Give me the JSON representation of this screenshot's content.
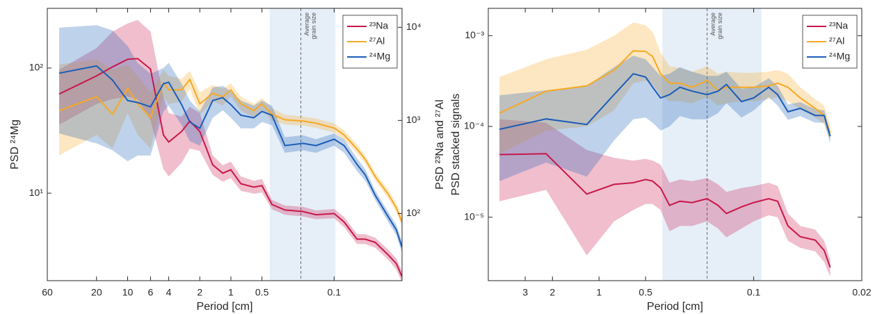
{
  "chart_data": [
    {
      "type": "line",
      "xlabel": "Period [cm]",
      "ylabel": "PSD ²⁴Mg",
      "y2label": "PSD ²³Na and ²⁷Al",
      "xscale": "log",
      "yscale": "log",
      "y2scale": "log",
      "grid": false,
      "legend": "upper right",
      "xlim": [
        60,
        0.022
      ],
      "xticks": [
        60,
        20,
        10,
        6,
        4,
        2,
        1,
        0.5,
        0.1
      ],
      "ylim": [
        2,
        300
      ],
      "yticks": [
        {
          "value": 10,
          "label": "10¹"
        },
        {
          "value": 100,
          "label": "10²"
        }
      ],
      "y2lim": [
        19,
        16000
      ],
      "y2ticks": [
        {
          "value": 100,
          "label": "10²"
        },
        {
          "value": 1000,
          "label": "10³"
        },
        {
          "value": 10000,
          "label": "10⁴"
        }
      ],
      "shade": [
        0.42,
        0.097
      ],
      "marker_x": 0.21,
      "annotation": [
        "Average",
        "grain size"
      ],
      "x": [
        46,
        20,
        14,
        10,
        8,
        6,
        4.5,
        4,
        3,
        2.5,
        2,
        1.5,
        1.2,
        1,
        0.8,
        0.6,
        0.5,
        0.4,
        0.3,
        0.2,
        0.15,
        0.1,
        0.08,
        0.06,
        0.05,
        0.04,
        0.03,
        0.025,
        0.022
      ],
      "series": [
        {
          "name": "²³Na",
          "color": "#c8174a",
          "axis": "y2",
          "values": [
            1923,
            3006,
            3758,
            4539,
            4612,
            3565,
            697,
            587,
            760,
            984,
            760,
            333,
            271,
            295,
            209,
            192,
            199,
            125,
            109,
            105,
            97,
            100,
            81,
            53,
            53,
            49,
            36,
            29,
            21
          ],
          "upper": [
            3500,
            6000,
            9000,
            11000,
            12000,
            9000,
            1800,
            1200,
            1100,
            1400,
            1200,
            420,
            330,
            360,
            250,
            225,
            235,
            140,
            122,
            118,
            108,
            112,
            92,
            60,
            60,
            55,
            41,
            33,
            24
          ],
          "lower": [
            900,
            1500,
            1700,
            1800,
            1700,
            1000,
            300,
            250,
            350,
            500,
            470,
            260,
            220,
            240,
            175,
            163,
            168,
            111,
            97,
            93,
            87,
            89,
            71,
            47,
            47,
            43,
            32,
            25,
            18
          ]
        },
        {
          "name": "²⁷Al",
          "color": "#f7a823",
          "axis": "y2",
          "values": [
            1271,
            1794,
            1167,
            2205,
            1510,
            1072,
            2530,
            2130,
            2130,
            2755,
            1510,
            1954,
            1794,
            2130,
            1510,
            1271,
            1510,
            1167,
            1016,
            984,
            933,
            828,
            697,
            494,
            382,
            249,
            162,
            115,
            81
          ],
          "upper": [
            4000,
            4500,
            3500,
            4000,
            3000,
            2000,
            3500,
            3000,
            2800,
            3400,
            2000,
            2400,
            2200,
            2500,
            1800,
            1500,
            1750,
            1350,
            1150,
            1100,
            1050,
            930,
            780,
            550,
            420,
            275,
            180,
            128,
            92
          ],
          "lower": [
            420,
            700,
            500,
            1200,
            700,
            500,
            1800,
            1500,
            1600,
            2200,
            1150,
            1600,
            1450,
            1800,
            1270,
            1080,
            1300,
            1000,
            900,
            880,
            830,
            740,
            620,
            440,
            345,
            225,
            146,
            104,
            72
          ]
        },
        {
          "name": "²⁴Mg",
          "color": "#1a5cb8",
          "axis": "y",
          "values": [
            91,
            104,
            80,
            55,
            53,
            49,
            75,
            77,
            51,
            37,
            33,
            55,
            58,
            51,
            42,
            40,
            45,
            42,
            24,
            25,
            24,
            27,
            24,
            17,
            14,
            9.6,
            6.5,
            5.1,
            3.7
          ],
          "upper": [
            210,
            220,
            200,
            150,
            110,
            90,
            100,
            110,
            75,
            55,
            45,
            70,
            72,
            65,
            55,
            50,
            55,
            50,
            28,
            29,
            27,
            30,
            27,
            19,
            15.5,
            10.5,
            7.1,
            5.6,
            4.1
          ],
          "lower": [
            30,
            25,
            22,
            18,
            20,
            20,
            45,
            50,
            35,
            26,
            24,
            40,
            46,
            40,
            33,
            33,
            37,
            35,
            21,
            22,
            21,
            24,
            21,
            15,
            12.6,
            8.8,
            5.9,
            4.6,
            3.3
          ]
        }
      ]
    },
    {
      "type": "line",
      "xlabel": "Period [cm]",
      "ylabel": "PSD stacked signals",
      "xscale": "log",
      "yscale": "log",
      "grid": false,
      "legend": "upper right",
      "xlim": [
        5.2,
        0.02
      ],
      "xticks": [
        3,
        2,
        1,
        0.5,
        0.1,
        0.02
      ],
      "ylim": [
        2e-06,
        0.002
      ],
      "yticks": [
        {
          "value": 1e-05,
          "label": "10⁻⁵"
        },
        {
          "value": 0.0001,
          "label": "10⁻⁴"
        },
        {
          "value": 0.001,
          "label": "10⁻³"
        }
      ],
      "shade": [
        0.39,
        0.089
      ],
      "marker_x": 0.2,
      "annotation": [
        "Average",
        "grain size"
      ],
      "x": [
        4.4,
        2.2,
        1.2,
        0.8,
        0.6,
        0.5,
        0.45,
        0.4,
        0.35,
        0.3,
        0.25,
        0.2,
        0.17,
        0.15,
        0.12,
        0.1,
        0.08,
        0.07,
        0.06,
        0.05,
        0.04,
        0.035,
        0.032
      ],
      "series": [
        {
          "name": "²³Na",
          "color": "#c8174a",
          "values": [
            4.9e-05,
            5e-05,
            1.8e-05,
            2.3e-05,
            2.4e-05,
            2.6e-05,
            2.5e-05,
            2.1e-05,
            1.35e-05,
            1.5e-05,
            1.45e-05,
            1.6e-05,
            1.35e-05,
            1.1e-05,
            1.3e-05,
            1.45e-05,
            1.6e-05,
            1.5e-05,
            8e-06,
            6.1e-06,
            5.6e-06,
            4.3e-06,
            2.8e-06
          ],
          "upper": [
            0.00012,
            0.00011,
            5.5e-05,
            4.5e-05,
            4.2e-05,
            4.4e-05,
            4.2e-05,
            3.8e-05,
            2.4e-05,
            2.6e-05,
            2.5e-05,
            2.7e-05,
            2.3e-05,
            1.9e-05,
            2.1e-05,
            2.2e-05,
            2.4e-05,
            2.2e-05,
            1.1e-05,
            8e-06,
            7.3e-06,
            5.5e-06,
            3.4e-06
          ],
          "lower": [
            1.5e-05,
            2e-05,
            3.8e-06,
            9e-06,
            1.2e-05,
            1.4e-05,
            1.4e-05,
            1.2e-05,
            7e-06,
            8e-06,
            8e-06,
            9e-06,
            7.5e-06,
            6e-06,
            7.5e-06,
            9e-06,
            1.05e-05,
            1e-05,
            5.5e-06,
            4.6e-06,
            4.2e-06,
            3.2e-06,
            2.2e-06
          ]
        },
        {
          "name": "²⁷Al",
          "color": "#f7a823",
          "values": [
            0.00014,
            0.000245,
            0.00028,
            0.000415,
            0.00068,
            0.00067,
            0.00059,
            0.00038,
            0.0003,
            0.0003,
            0.00027,
            0.00032,
            0.00025,
            0.00027,
            0.00027,
            0.00027,
            0.00028,
            0.0003,
            0.00027,
            0.000206,
            0.000158,
            0.000132,
            8.5e-05
          ],
          "upper": [
            0.00035,
            0.00055,
            0.0007,
            0.001,
            0.0014,
            0.0013,
            0.0011,
            0.00065,
            0.00046,
            0.00044,
            0.0004,
            0.00046,
            0.00038,
            0.0004,
            0.00039,
            0.00039,
            0.0004,
            0.00042,
            0.00038,
            0.00027,
            0.0002,
            0.00017,
            0.0001
          ],
          "lower": [
            5e-05,
            9e-05,
            0.0001,
            0.00015,
            0.0003,
            0.00032,
            0.00029,
            0.00022,
            0.00019,
            0.00019,
            0.00018,
            0.00021,
            0.00017,
            0.00018,
            0.00019,
            0.00019,
            0.0002,
            0.00021,
            0.00019,
            0.000155,
            0.000125,
            0.000105,
            7e-05
          ]
        },
        {
          "name": "²⁴Mg",
          "color": "#1a5cb8",
          "values": [
            9.3e-05,
            0.000121,
            0.000105,
            0.000224,
            0.00038,
            0.00035,
            0.00027,
            0.000206,
            0.000224,
            0.00027,
            0.000245,
            0.000224,
            0.000245,
            0.00029,
            0.000188,
            0.000206,
            0.00027,
            0.000224,
            0.000145,
            0.000158,
            0.000132,
            0.000132,
            7.8e-05
          ],
          "upper": [
            0.00022,
            0.00025,
            0.00028,
            0.00045,
            0.0006,
            0.00055,
            0.00045,
            0.00036,
            0.00038,
            0.00045,
            0.0004,
            0.00036,
            0.00036,
            0.0004,
            0.00026,
            0.00027,
            0.00034,
            0.00028,
            0.000175,
            0.000185,
            0.000155,
            0.00015,
            8.5e-05
          ],
          "lower": [
            2.5e-05,
            4e-05,
            2.8e-05,
            7e-05,
            0.00012,
            0.000125,
            0.00011,
            9e-05,
            0.0001,
            0.00013,
            0.00012,
            0.00012,
            0.00014,
            0.00018,
            0.000125,
            0.00015,
            0.00021,
            0.00017,
            0.000118,
            0.00013,
            0.00011,
            0.00011,
            6.5e-05
          ]
        }
      ]
    }
  ]
}
